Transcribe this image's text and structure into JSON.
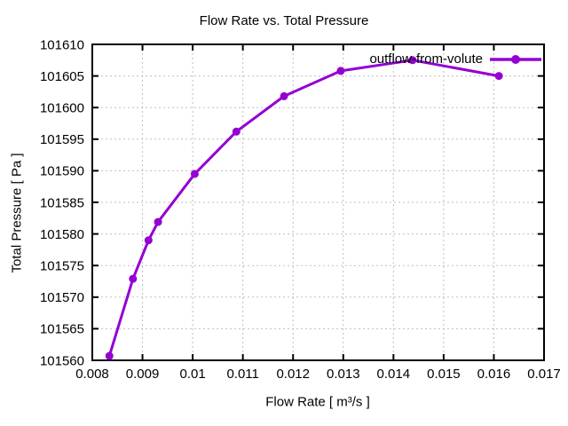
{
  "chart_data": {
    "type": "line",
    "title": "Flow Rate vs. Total Pressure",
    "xlabel": "Flow Rate [ m³/s ]",
    "ylabel": "Total Pressure [ Pa ]",
    "xlim": [
      0.008,
      0.017
    ],
    "ylim": [
      101560,
      101610
    ],
    "xticks": {
      "values": [
        0.008,
        0.009,
        0.01,
        0.011,
        0.012,
        0.013,
        0.014,
        0.015,
        0.016,
        0.017
      ],
      "labels": [
        "0.008",
        "0.009",
        "0.01",
        "0.011",
        "0.012",
        "0.013",
        "0.014",
        "0.015",
        "0.016",
        "0.017"
      ]
    },
    "yticks": {
      "values": [
        101560,
        101565,
        101570,
        101575,
        101580,
        101585,
        101590,
        101595,
        101600,
        101605,
        101610
      ],
      "labels": [
        "101560",
        "101565",
        "101570",
        "101575",
        "101580",
        "101585",
        "101590",
        "101595",
        "101600",
        "101605",
        "101610"
      ]
    },
    "grid": true,
    "legend_position": "top-right",
    "series": [
      {
        "name": "outflow-from-volute",
        "color": "#9400d3",
        "marker": "circle",
        "x": [
          0.00834,
          0.00881,
          0.00912,
          0.00931,
          0.01004,
          0.01087,
          0.01182,
          0.01295,
          0.01438,
          0.0161
        ],
        "y": [
          101560.7,
          101572.9,
          101579.0,
          101581.9,
          101589.5,
          101596.2,
          101601.8,
          101605.8,
          101607.5,
          101605.0
        ]
      }
    ]
  },
  "colors": {
    "series": "#9400d3",
    "grid": "#bfbfbf",
    "axis": "#000000",
    "background": "#ffffff",
    "text": "#000000"
  }
}
